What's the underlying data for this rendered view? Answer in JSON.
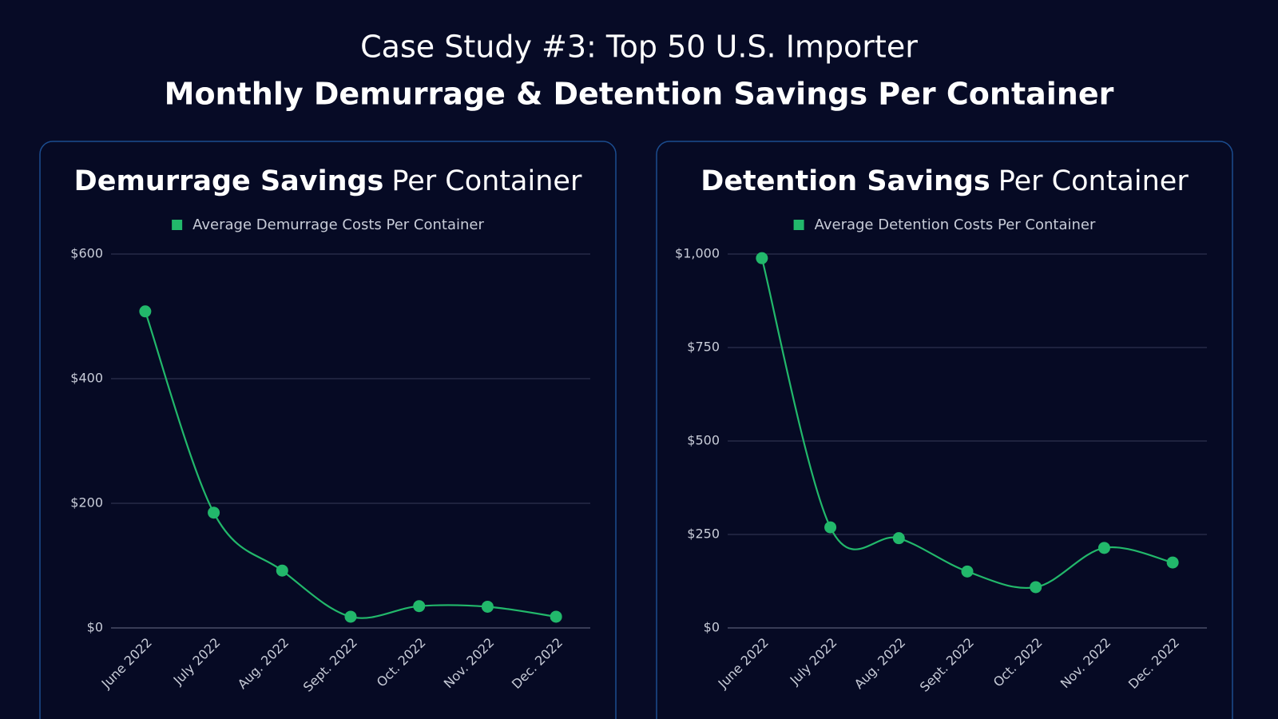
{
  "header": {
    "title": "Case Study #3: Top 50 U.S. Importer",
    "subtitle": "Monthly Demurrage & Detention Savings Per Container"
  },
  "chart_data": [
    {
      "type": "line",
      "title": [
        "Demurrage Savings",
        "Per Container"
      ],
      "categories": [
        "June 2022",
        "July 2022",
        "Aug. 2022",
        "Sept. 2022",
        "Oct. 2022",
        "Nov. 2022",
        "Dec. 2022"
      ],
      "series": [
        {
          "name": "Average Demurrage Costs Per Container",
          "color": "#22b86b",
          "values": [
            508,
            185,
            92,
            18,
            35,
            34,
            18
          ]
        }
      ],
      "ylim": [
        0,
        600
      ],
      "yticks": [
        {
          "value": 0,
          "label": "$0"
        },
        {
          "value": 200,
          "label": "$200"
        },
        {
          "value": 400,
          "label": "$400"
        },
        {
          "value": 600,
          "label": "$600"
        }
      ],
      "grid": true,
      "legend": "top"
    },
    {
      "type": "line",
      "title": [
        "Detention Savings",
        "Per Container"
      ],
      "categories": [
        "June 2022",
        "July 2022",
        "Aug. 2022",
        "Sept. 2022",
        "Oct. 2022",
        "Nov. 2022",
        "Dec. 2022"
      ],
      "series": [
        {
          "name": "Average Detention Costs Per Container",
          "color": "#22b86b",
          "values": [
            989,
            269,
            240,
            151,
            109,
            214,
            175
          ]
        }
      ],
      "ylim": [
        0,
        1000
      ],
      "yticks": [
        {
          "value": 0,
          "label": "$0"
        },
        {
          "value": 250,
          "label": "$250"
        },
        {
          "value": 500,
          "label": "$500"
        },
        {
          "value": 750,
          "label": "$750"
        },
        {
          "value": 1000,
          "label": "$1,000"
        }
      ],
      "grid": true,
      "legend": "top"
    }
  ]
}
